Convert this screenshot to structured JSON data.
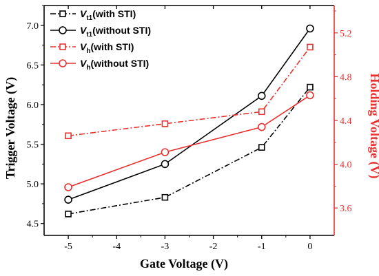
{
  "chart_data": {
    "type": "line",
    "x": [
      -5,
      -3,
      -1,
      0
    ],
    "xlabel": "Gate Voltage (V)",
    "ylabel_left": "Trigger Voltage (V)",
    "ylabel_right": "Holding Voltage (V)",
    "xlim": [
      -5.5,
      0.5
    ],
    "ylim_left": [
      4.35,
      7.25
    ],
    "ylim_right": [
      3.35,
      5.45
    ],
    "x_ticks": [
      -5,
      -4,
      -3,
      -2,
      -1,
      0
    ],
    "x_tick_labels": [
      "-5",
      "-4",
      "-3",
      "-2",
      "-1",
      "0"
    ],
    "y_left_ticks": [
      4.5,
      5.0,
      5.5,
      6.0,
      6.5,
      7.0
    ],
    "y_left_tick_labels": [
      "4.5",
      "5.0",
      "5.5",
      "6.0",
      "6.5",
      "7.0"
    ],
    "y_right_ticks": [
      3.6,
      4.0,
      4.4,
      4.8,
      5.2
    ],
    "y_right_tick_labels": [
      "3.6",
      "4.0",
      "4.4",
      "4.8",
      "5.2"
    ],
    "grid": false,
    "legend_position": "top-left",
    "colors": {
      "black": "#000000",
      "red": "#e8302f"
    },
    "series": [
      {
        "name": "Vt1(with STI)",
        "legend_main": "V",
        "legend_sub": "t1",
        "legend_rest": "(with STI)",
        "axis": "left",
        "color": "#000000",
        "dash": "dashdot",
        "marker": "square",
        "values": [
          4.62,
          4.83,
          5.46,
          6.22
        ]
      },
      {
        "name": "Vt1(without STI)",
        "legend_main": "V",
        "legend_sub": "t1",
        "legend_rest": "(without STI)",
        "axis": "left",
        "color": "#000000",
        "dash": "solid",
        "marker": "circle",
        "values": [
          4.8,
          5.25,
          6.11,
          6.96
        ]
      },
      {
        "name": "Vh(with STI)",
        "legend_main": "V",
        "legend_sub": "h",
        "legend_rest": "(with STI)",
        "axis": "right",
        "color": "#e8302f",
        "dash": "dashdot",
        "marker": "square",
        "values": [
          4.26,
          4.37,
          4.48,
          5.07
        ]
      },
      {
        "name": "Vh(without STI)",
        "legend_main": "V",
        "legend_sub": "h",
        "legend_rest": "(without STI)",
        "axis": "right",
        "color": "#e8302f",
        "dash": "solid",
        "marker": "circle",
        "values": [
          3.79,
          4.11,
          4.34,
          4.63
        ]
      }
    ]
  }
}
